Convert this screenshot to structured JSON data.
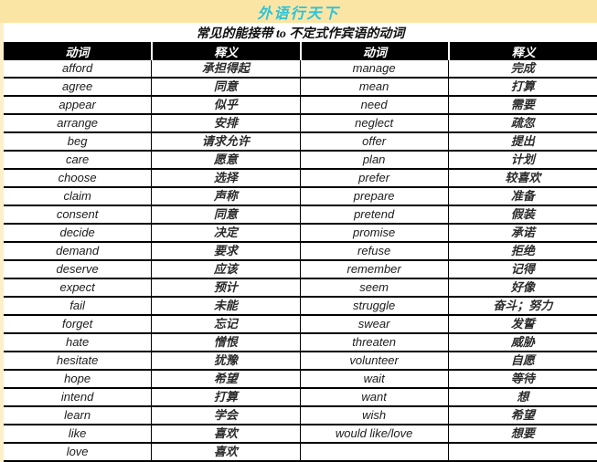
{
  "page": {
    "title": "外语行天下",
    "subtitle": "常见的能接带 to 不定式作宾语的动词"
  },
  "colors": {
    "banner_bg": "#fbe5a4",
    "page_margin_bg": "#fdf0c9",
    "title_text": "#2bc3d9",
    "header_bg": "#000000",
    "header_text": "#ffffff",
    "body_bg": "#ffffff",
    "border": "#000000"
  },
  "table": {
    "headers": [
      "动词",
      "释义",
      "动词",
      "释义"
    ],
    "rows": [
      [
        "afford",
        "承担得起",
        "manage",
        "完成"
      ],
      [
        "agree",
        "同意",
        "mean",
        "打算"
      ],
      [
        "appear",
        "似乎",
        "need",
        "需要"
      ],
      [
        "arrange",
        "安排",
        "neglect",
        "疏忽"
      ],
      [
        "beg",
        "请求允许",
        "offer",
        "提出"
      ],
      [
        "care",
        "愿意",
        "plan",
        "计划"
      ],
      [
        "choose",
        "选择",
        "prefer",
        "较喜欢"
      ],
      [
        "claim",
        "声称",
        "prepare",
        "准备"
      ],
      [
        "consent",
        "同意",
        "pretend",
        "假装"
      ],
      [
        "decide",
        "决定",
        "promise",
        "承诺"
      ],
      [
        "demand",
        "要求",
        "refuse",
        "拒绝"
      ],
      [
        "deserve",
        "应该",
        "remember",
        "记得"
      ],
      [
        "expect",
        "预计",
        "seem",
        "好像"
      ],
      [
        "fail",
        "未能",
        "struggle",
        "奋斗；努力"
      ],
      [
        "forget",
        "忘记",
        "swear",
        "发誓"
      ],
      [
        "hate",
        "憎恨",
        "threaten",
        "威胁"
      ],
      [
        "hesitate",
        "犹豫",
        "volunteer",
        "自愿"
      ],
      [
        "hope",
        "希望",
        "wait",
        "等待"
      ],
      [
        "intend",
        "打算",
        "want",
        "想"
      ],
      [
        "learn",
        "学会",
        "wish",
        "希望"
      ],
      [
        "like",
        "喜欢",
        "would like/love",
        "想要"
      ],
      [
        "love",
        "喜欢",
        "",
        ""
      ]
    ]
  }
}
